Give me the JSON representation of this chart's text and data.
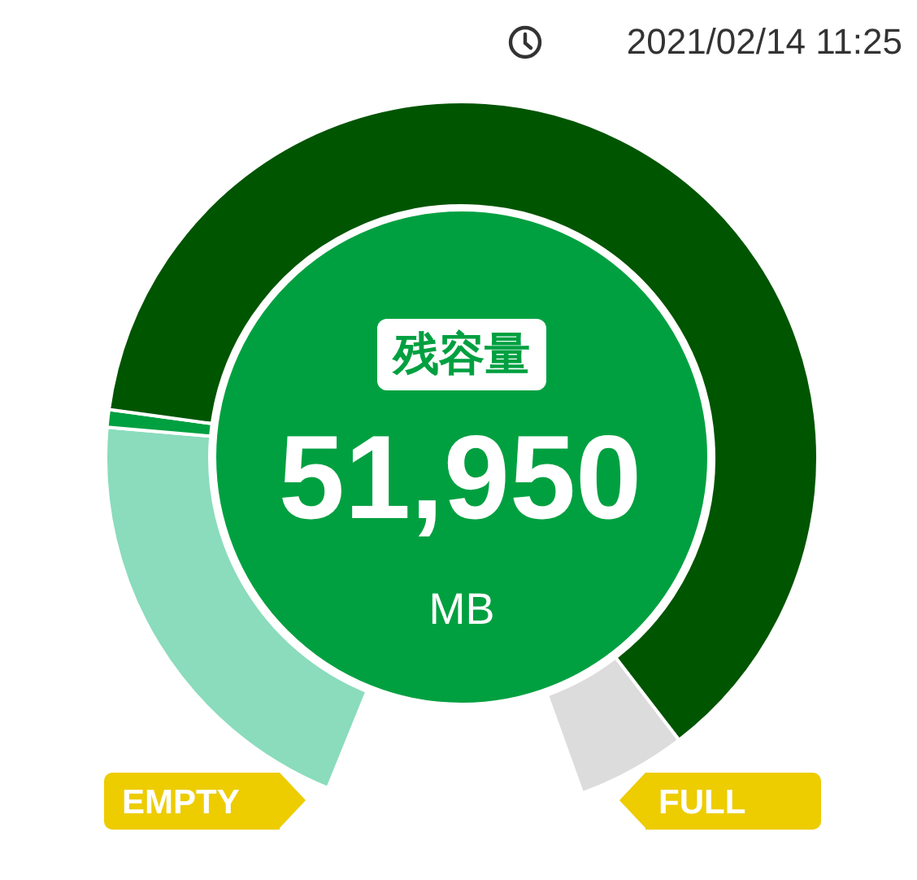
{
  "chart_data": {
    "type": "donut",
    "categories": [
      null,
      null,
      null,
      null
    ],
    "values": [
      22.9,
      0.9,
      70.6,
      5.6
    ],
    "colors": [
      "#8adcbc",
      "#00a040",
      "#005500",
      "#dcdcdc"
    ],
    "annotations": [
      "2021/02/14 11:25",
      "残容量",
      "51,950",
      "MB",
      "EMPTY",
      "FULL"
    ]
  }
}
